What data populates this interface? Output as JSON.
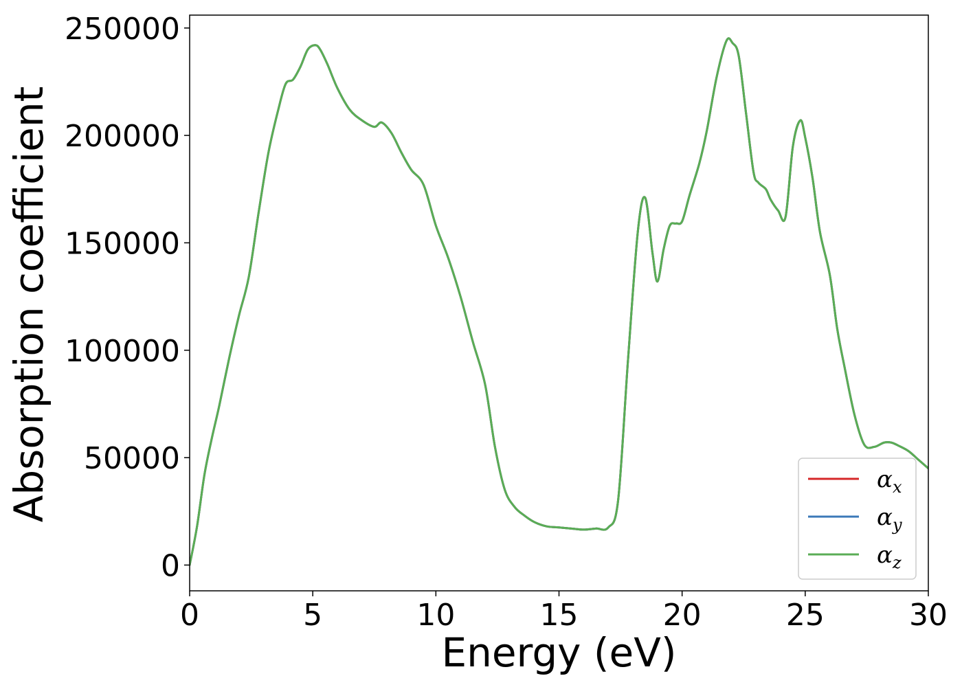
{
  "chart_data": {
    "type": "line",
    "title": "",
    "xlabel": "Energy (eV)",
    "ylabel": "Absorption coefficient",
    "xlim": [
      0,
      30
    ],
    "ylim": [
      -12000,
      256000
    ],
    "x_ticks": [
      "0",
      "5",
      "10",
      "15",
      "20",
      "25",
      "30"
    ],
    "y_ticks": [
      "0",
      "50000",
      "100000",
      "150000",
      "200000",
      "250000"
    ],
    "grid": false,
    "legend_position": "bottom-right",
    "legend": [
      {
        "symbol": "α",
        "subscript": "x",
        "color": "#d62728"
      },
      {
        "symbol": "α",
        "subscript": "y",
        "color": "#3b78b8"
      },
      {
        "symbol": "α",
        "subscript": "z",
        "color": "#5aad55"
      }
    ],
    "x": [
      0,
      0.3,
      0.6,
      0.9,
      1.2,
      1.6,
      2.0,
      2.4,
      2.8,
      3.2,
      3.6,
      3.9,
      4.2,
      4.5,
      4.8,
      5.1,
      5.3,
      5.6,
      6.0,
      6.5,
      7.0,
      7.5,
      7.8,
      8.2,
      8.6,
      9.0,
      9.5,
      10.0,
      10.5,
      11.0,
      11.5,
      12.0,
      12.4,
      12.8,
      13.2,
      13.6,
      14.0,
      14.5,
      15.0,
      15.5,
      16.0,
      16.5,
      17.0,
      17.4,
      17.8,
      18.2,
      18.5,
      18.8,
      19.0,
      19.25,
      19.5,
      19.75,
      20.0,
      20.3,
      20.7,
      21.0,
      21.4,
      21.8,
      22.05,
      22.3,
      22.6,
      22.9,
      23.1,
      23.4,
      23.6,
      23.9,
      24.2,
      24.5,
      24.8,
      25.0,
      25.3,
      25.6,
      26.0,
      26.3,
      26.6,
      27.0,
      27.4,
      27.8,
      28.2,
      28.5,
      28.8,
      29.2,
      29.6,
      30.0
    ],
    "series": [
      {
        "values": [
          0,
          18000,
          42000,
          59000,
          74000,
          96000,
          116000,
          134000,
          164000,
          192000,
          212000,
          224000,
          226000,
          232000,
          240000,
          242000,
          240000,
          233000,
          222000,
          212000,
          207000,
          204000,
          206000,
          201000,
          192000,
          184000,
          177000,
          158000,
          143000,
          125000,
          104000,
          84000,
          55000,
          35000,
          27000,
          23000,
          20000,
          18000,
          17500,
          17000,
          16500,
          17000,
          17500,
          30000,
          95000,
          155000,
          171000,
          145000,
          132000,
          147000,
          158000,
          159000,
          160000,
          172000,
          187000,
          202000,
          227000,
          244000,
          243000,
          237000,
          210000,
          183000,
          178000,
          175000,
          170000,
          165000,
          162000,
          195000,
          207000,
          199000,
          180000,
          155000,
          135000,
          110000,
          92000,
          70000,
          56000,
          55000,
          57000,
          57000,
          55500,
          53000,
          49000,
          45000
        ]
      },
      {
        "values": [
          0,
          18000,
          42000,
          59000,
          74000,
          96000,
          116000,
          134000,
          164000,
          192000,
          212000,
          224000,
          226000,
          232000,
          240000,
          242000,
          240000,
          233000,
          222000,
          212000,
          207000,
          204000,
          206000,
          201000,
          192000,
          184000,
          177000,
          158000,
          143000,
          125000,
          104000,
          84000,
          55000,
          35000,
          27000,
          23000,
          20000,
          18000,
          17500,
          17000,
          16500,
          17000,
          17500,
          30000,
          95000,
          155000,
          171000,
          145000,
          132000,
          147000,
          158000,
          159000,
          160000,
          172000,
          187000,
          202000,
          227000,
          244000,
          243000,
          237000,
          210000,
          183000,
          178000,
          175000,
          170000,
          165000,
          162000,
          195000,
          207000,
          199000,
          180000,
          155000,
          135000,
          110000,
          92000,
          70000,
          56000,
          55000,
          57000,
          57000,
          55500,
          53000,
          49000,
          45000
        ]
      },
      {
        "values": [
          0,
          18000,
          42000,
          59000,
          74000,
          96000,
          116000,
          134000,
          164000,
          192000,
          212000,
          224000,
          226000,
          232000,
          240000,
          242000,
          240000,
          233000,
          222000,
          212000,
          207000,
          204000,
          206000,
          201000,
          192000,
          184000,
          177000,
          158000,
          143000,
          125000,
          104000,
          84000,
          55000,
          35000,
          27000,
          23000,
          20000,
          18000,
          17500,
          17000,
          16500,
          17000,
          17500,
          30000,
          95000,
          155000,
          171000,
          145000,
          132000,
          147000,
          158000,
          159000,
          160000,
          172000,
          187000,
          202000,
          227000,
          244000,
          243000,
          237000,
          210000,
          183000,
          178000,
          175000,
          170000,
          165000,
          162000,
          195000,
          207000,
          199000,
          180000,
          155000,
          135000,
          110000,
          92000,
          70000,
          56000,
          55000,
          57000,
          57000,
          55500,
          53000,
          49000,
          45000
        ]
      }
    ]
  }
}
